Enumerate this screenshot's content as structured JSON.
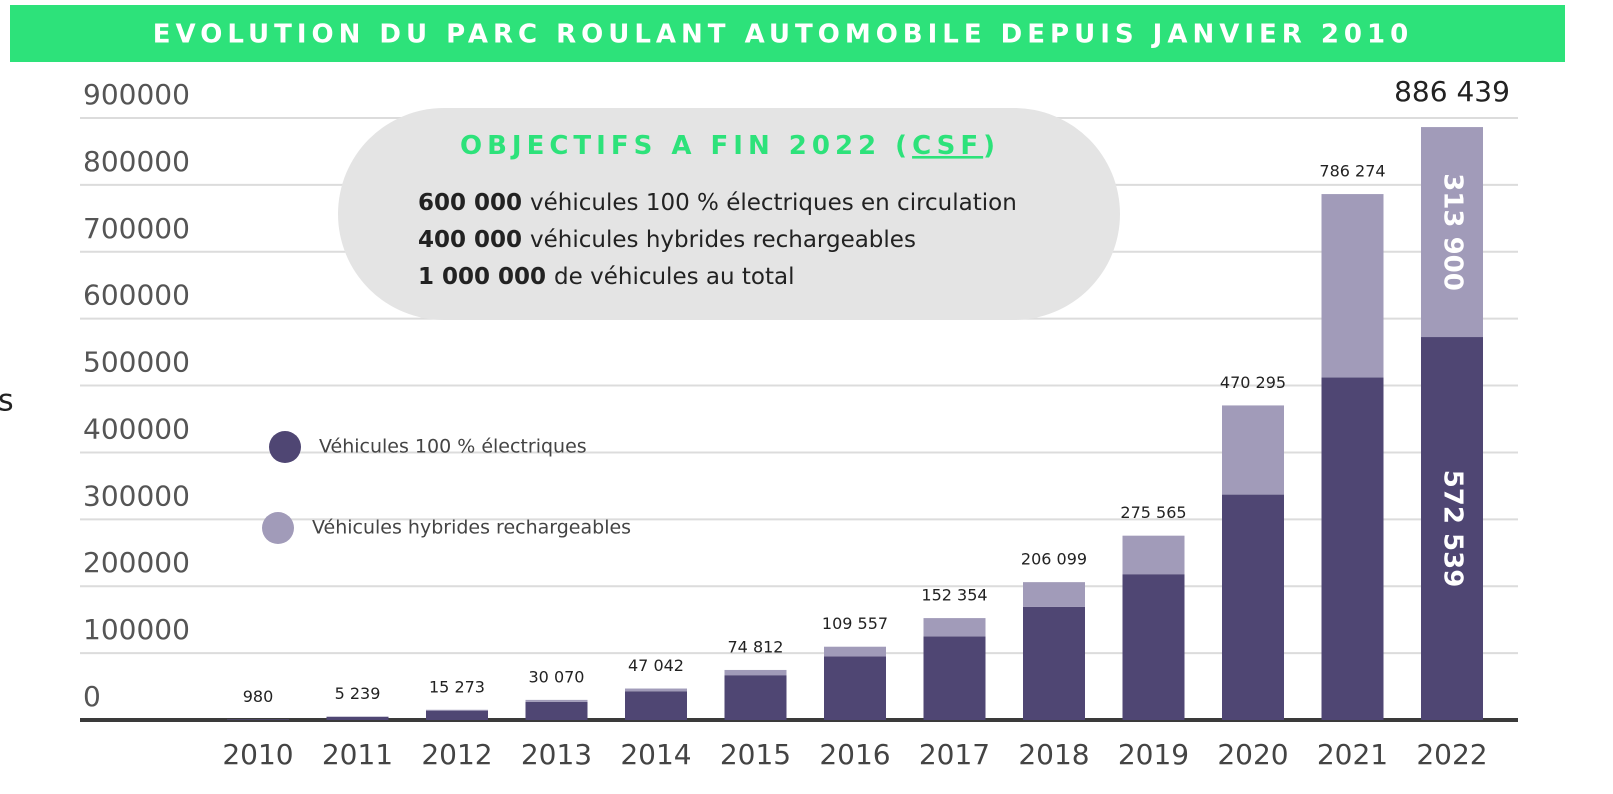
{
  "chart_data": {
    "type": "stacked_bar",
    "title": "EVOLUTION DU PARC ROULANT AUTOMOBILE DEPUIS JANVIER 2010",
    "edge_text": "s",
    "annotation": {
      "title_parts": [
        "OBJECTIFS A FIN 2022 (",
        "CSF",
        ")"
      ],
      "lines": [
        {
          "bold": "600 000",
          "text": "véhicules 100 % électriques en circulation"
        },
        {
          "bold": "400 000",
          "text": "véhicules hybrides rechargeables"
        },
        {
          "bold": "1 000 000",
          "text": "de véhicules au total"
        }
      ]
    },
    "categories": [
      "2010",
      "2011",
      "2012",
      "2013",
      "2014",
      "2015",
      "2016",
      "2017",
      "2018",
      "2019",
      "2020",
      "2021",
      "2022"
    ],
    "series": [
      {
        "name": "Véhicules 100 % électriques",
        "color": "#4f4673",
        "values": [
          900,
          4900,
          14000,
          27000,
          43000,
          67000,
          95000,
          125000,
          169000,
          218000,
          337000,
          512000,
          572539
        ],
        "value_labels": [
          null,
          null,
          null,
          null,
          null,
          null,
          null,
          null,
          null,
          null,
          null,
          null,
          "572 539"
        ]
      },
      {
        "name": "Véhicules hybrides rechargeables",
        "color": "#a19bb9",
        "values": [
          80,
          339,
          1273,
          3070,
          4042,
          7812,
          14557,
          27354,
          37099,
          57565,
          133295,
          274274,
          313900
        ],
        "value_labels": [
          null,
          null,
          null,
          null,
          null,
          null,
          null,
          null,
          null,
          null,
          null,
          null,
          "313 900"
        ]
      }
    ],
    "totals": [
      980,
      5239,
      15273,
      30070,
      47042,
      74812,
      109557,
      152354,
      206099,
      275565,
      470295,
      786274,
      886439
    ],
    "total_labels": [
      "980",
      "5 239",
      "15 273",
      "30 070",
      "47 042",
      "74 812",
      "109 557",
      "152 354",
      "206 099",
      "275 565",
      "470 295",
      "786 274",
      "886 439"
    ],
    "ylim": [
      0,
      900000
    ],
    "yticks": [
      0,
      100000,
      200000,
      300000,
      400000,
      500000,
      600000,
      700000,
      800000,
      900000
    ],
    "grid": true
  }
}
